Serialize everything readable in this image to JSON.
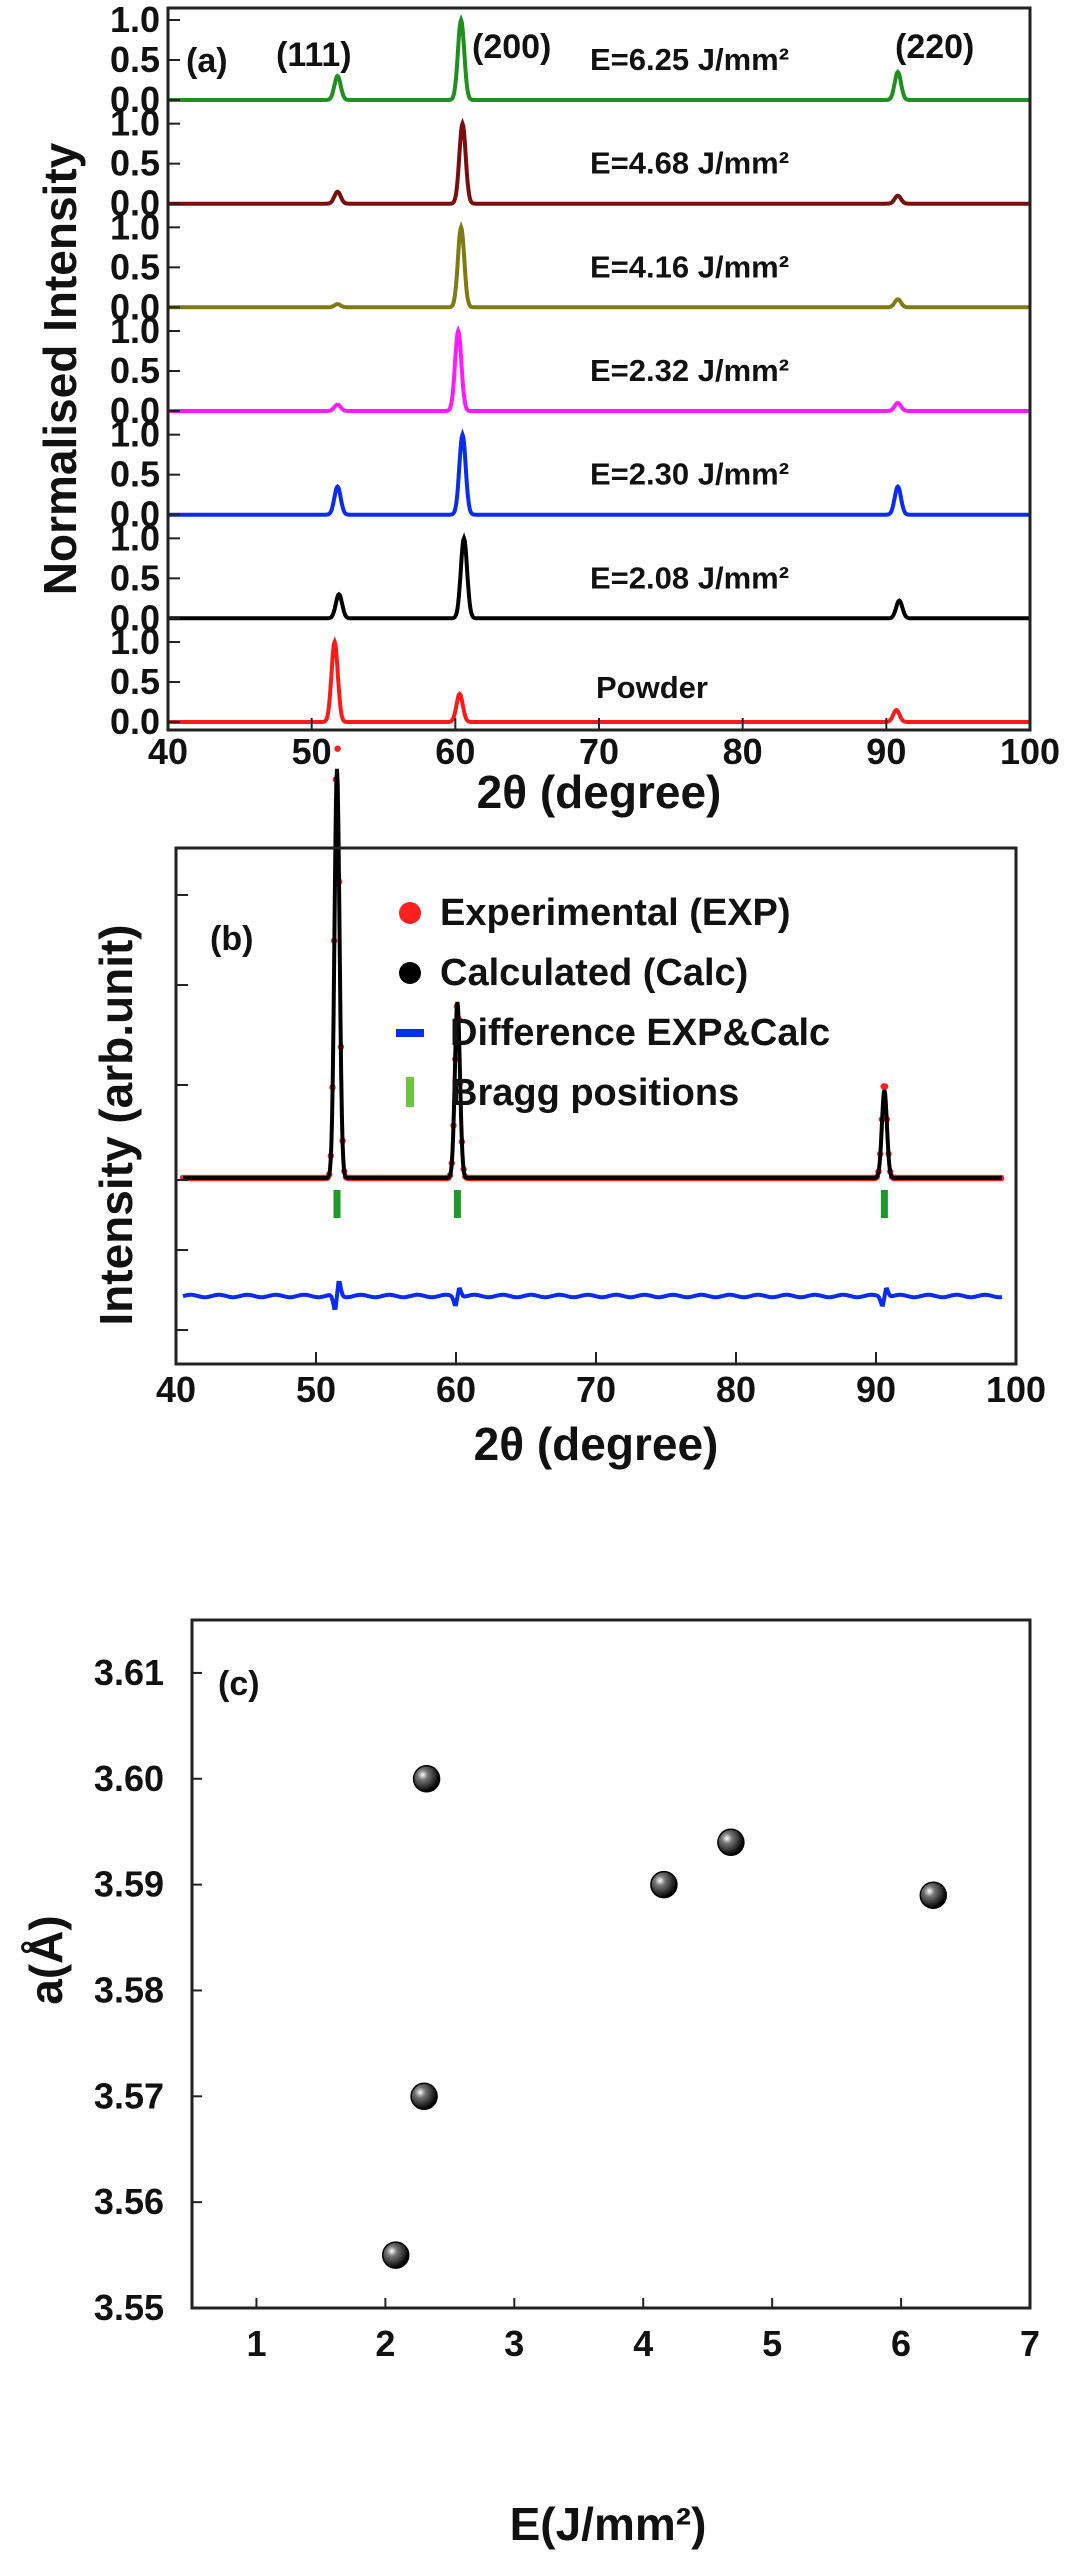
{
  "chart_data": [
    {
      "panel": "(a)",
      "type": "line",
      "xlabel": "2θ (degree)",
      "ylabel": "Normalised Intensity",
      "xlim": [
        40,
        100
      ],
      "xticks": [
        "40",
        "50",
        "60",
        "70",
        "80",
        "90",
        "100"
      ],
      "yticks": [
        "0.0",
        "0.5",
        "1.0"
      ],
      "ylim_per_curve": [
        0,
        1
      ],
      "peak_labels": [
        "(111)",
        "(200)",
        "(220)"
      ],
      "peak_positions": [
        51.8,
        60.5,
        90.8
      ],
      "series": [
        {
          "name": "E=6.25 J/mm²",
          "color": "#1f8f1f",
          "peaks": [
            {
              "x": 51.8,
              "y": 0.3
            },
            {
              "x": 60.4,
              "y": 1.0
            },
            {
              "x": 90.8,
              "y": 0.35
            }
          ]
        },
        {
          "name": "E=4.68 J/mm²",
          "color": "#7a0d0d",
          "peaks": [
            {
              "x": 51.8,
              "y": 0.15
            },
            {
              "x": 60.5,
              "y": 1.0
            },
            {
              "x": 90.8,
              "y": 0.1
            }
          ]
        },
        {
          "name": "E=4.16 J/mm²",
          "color": "#7f7a12",
          "peaks": [
            {
              "x": 51.8,
              "y": 0.04
            },
            {
              "x": 60.4,
              "y": 1.0
            },
            {
              "x": 90.8,
              "y": 0.1
            }
          ]
        },
        {
          "name": "E=2.32 J/mm²",
          "color": "#ff1aff",
          "peaks": [
            {
              "x": 51.8,
              "y": 0.08
            },
            {
              "x": 60.2,
              "y": 1.0
            },
            {
              "x": 90.8,
              "y": 0.1
            }
          ]
        },
        {
          "name": "E=2.30 J/mm²",
          "color": "#0a2cf0",
          "peaks": [
            {
              "x": 51.8,
              "y": 0.35
            },
            {
              "x": 60.5,
              "y": 1.0
            },
            {
              "x": 90.8,
              "y": 0.35
            }
          ]
        },
        {
          "name": "E=2.08 J/mm²",
          "color": "#000000",
          "peaks": [
            {
              "x": 51.9,
              "y": 0.3
            },
            {
              "x": 60.6,
              "y": 1.0
            },
            {
              "x": 90.9,
              "y": 0.22
            }
          ]
        },
        {
          "name": "Powder",
          "color": "#ff1a1a",
          "peaks": [
            {
              "x": 51.6,
              "y": 1.0
            },
            {
              "x": 60.3,
              "y": 0.35
            },
            {
              "x": 90.7,
              "y": 0.15
            }
          ]
        }
      ]
    },
    {
      "panel": "(b)",
      "type": "line",
      "xlabel": "2θ (degree)",
      "ylabel": "Intensity (arb.unit)",
      "xlim": [
        40,
        100
      ],
      "xticks": [
        "40",
        "50",
        "60",
        "70",
        "80",
        "90",
        "100"
      ],
      "legend": [
        {
          "label": "Experimental (EXP)",
          "color": "#ff2020",
          "marker": "dot"
        },
        {
          "label": "Calculated (Calc)",
          "color": "#000000",
          "marker": "dot"
        },
        {
          "label": "Difference EXP&Calc",
          "color": "#0a2cf0",
          "marker": "dash"
        },
        {
          "label": "Bragg positions",
          "color": "#6cc644",
          "marker": "bar"
        }
      ],
      "peaks": [
        {
          "x": 51.5,
          "exp": 1.0,
          "calc": 0.93
        },
        {
          "x": 60.1,
          "exp": 0.4,
          "calc": 0.4
        },
        {
          "x": 90.6,
          "exp": 0.22,
          "calc": 0.2
        }
      ],
      "bragg_positions": [
        51.5,
        60.1,
        90.6
      ],
      "difference_spikes": [
        51.5,
        60.1,
        90.6
      ]
    },
    {
      "panel": "(c)",
      "type": "scatter",
      "xlabel": "E(J/mm²)",
      "ylabel": "a(Å)",
      "xlim": [
        0.5,
        7
      ],
      "ylim": [
        3.55,
        3.615
      ],
      "xticks": [
        "1",
        "2",
        "3",
        "4",
        "5",
        "6",
        "7"
      ],
      "yticks": [
        "3.55",
        "3.56",
        "3.57",
        "3.58",
        "3.59",
        "3.60",
        "3.61"
      ],
      "points": [
        {
          "x": 2.08,
          "y": 3.555
        },
        {
          "x": 2.3,
          "y": 3.57
        },
        {
          "x": 2.32,
          "y": 3.6
        },
        {
          "x": 4.16,
          "y": 3.59
        },
        {
          "x": 4.68,
          "y": 3.594
        },
        {
          "x": 6.25,
          "y": 3.589
        }
      ]
    }
  ]
}
